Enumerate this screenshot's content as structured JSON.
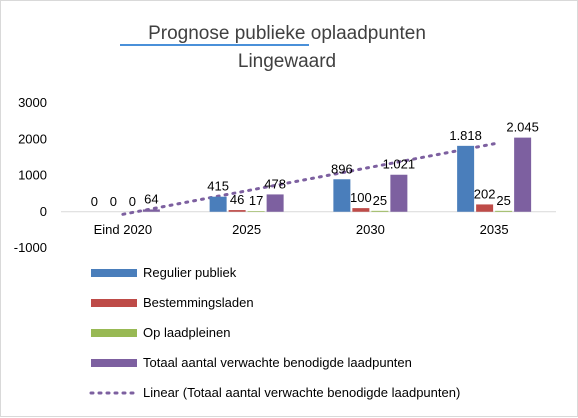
{
  "chart_data": {
    "type": "bar",
    "title": [
      "Prognose  publieke oplaadpunten",
      "Lingewaard"
    ],
    "categories": [
      "Eind 2020",
      "2025",
      "2030",
      "2035"
    ],
    "ylim": [
      -1000,
      3000
    ],
    "yticks": [
      -1000,
      0,
      1000,
      2000,
      3000
    ],
    "ytick_labels": [
      "-1000",
      "0",
      "1000",
      "2000",
      "3000"
    ],
    "grid": false,
    "legend_position": "bottom",
    "series": [
      {
        "name": "Regulier publiek",
        "color": "#4a7ebb",
        "values": [
          0,
          415,
          896,
          1818
        ],
        "labels": [
          "0",
          "415",
          "896",
          "1.818"
        ]
      },
      {
        "name": "Bestemmingsladen",
        "color": "#be4b48",
        "values": [
          0,
          46,
          100,
          202
        ],
        "labels": [
          "0",
          "46",
          "100",
          "202"
        ]
      },
      {
        "name": "Op laadpleinen",
        "color": "#98b954",
        "values": [
          0,
          17,
          25,
          25
        ],
        "labels": [
          "0",
          "17",
          "25",
          "25"
        ]
      },
      {
        "name": "Totaal aantal verwachte benodigde laadpunten",
        "color": "#7d60a0",
        "values": [
          64,
          478,
          1021,
          2045
        ],
        "labels": [
          "64",
          "478",
          "1.021",
          "2.045"
        ]
      }
    ],
    "trendline": {
      "name": "Linear (Totaal aantal verwachte benodigde laadpunten)",
      "color": "#7d60a0",
      "style": "dotted",
      "series_index": 3
    }
  }
}
